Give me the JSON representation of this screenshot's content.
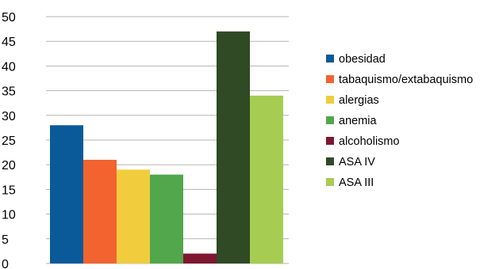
{
  "chart_data": {
    "type": "bar",
    "title": "",
    "xlabel": "",
    "ylabel": "",
    "ylim": [
      0,
      50
    ],
    "y_ticks": [
      0,
      5,
      10,
      15,
      20,
      25,
      30,
      35,
      40,
      45,
      50
    ],
    "grid": "horizontal",
    "legend_position": "right",
    "series": [
      {
        "name": "obesidad",
        "value": 28,
        "color": "#0a5a9a"
      },
      {
        "name": "tabaquismo/extabaquismo",
        "value": 21,
        "color": "#f26330"
      },
      {
        "name": "alergias",
        "value": 19,
        "color": "#f1cc3d"
      },
      {
        "name": "anemia",
        "value": 18,
        "color": "#52a64c"
      },
      {
        "name": "alcoholismo",
        "value": 2,
        "color": "#7e1730"
      },
      {
        "name": "ASA IV",
        "value": 47,
        "color": "#2f4a25"
      },
      {
        "name": "ASA III",
        "value": 34,
        "color": "#a6cc52"
      }
    ]
  }
}
